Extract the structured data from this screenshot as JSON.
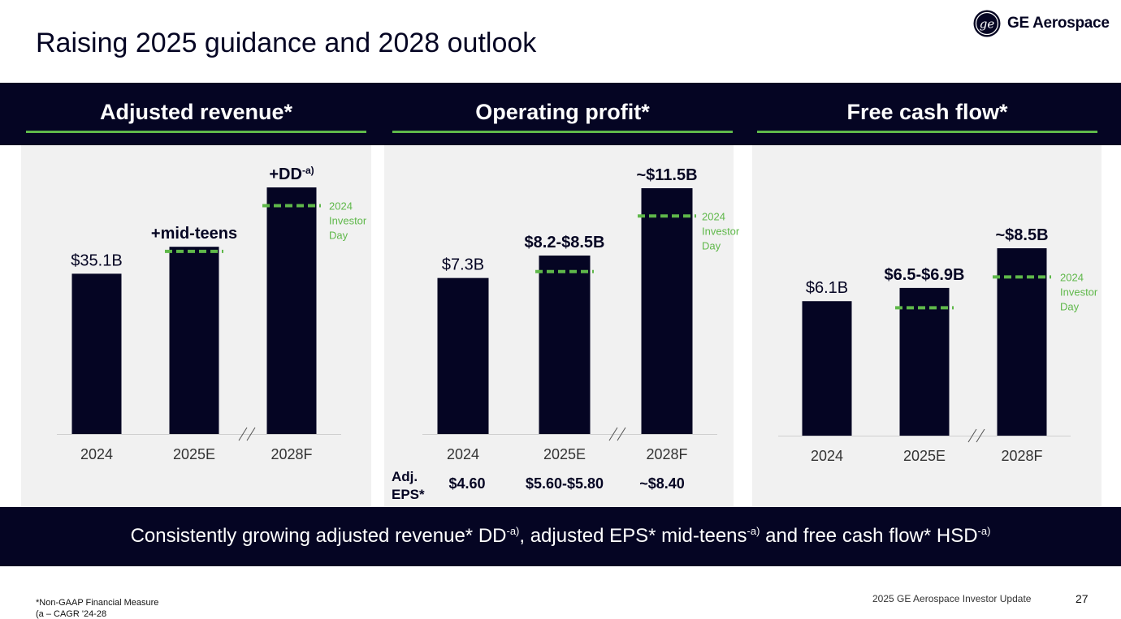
{
  "slide": {
    "title": "Raising 2025 guidance and 2028 outlook",
    "brand": "GE Aerospace",
    "colors": {
      "navy": "#050523",
      "green": "#5fb84a",
      "panel": "#f1f1f1",
      "grid": "#cfcfcf"
    }
  },
  "chart_data": [
    {
      "type": "bar",
      "title": "Adjusted revenue*",
      "categories": [
        "2024",
        "2025E",
        "2028F"
      ],
      "values": [
        35.1,
        41,
        54
      ],
      "value_labels": [
        "$35.1B",
        "+mid-teens",
        "+DD"
      ],
      "value_label_superscripts": [
        "",
        "",
        "-a)"
      ],
      "reference_series": {
        "name": "2024 Investor Day",
        "values": [
          40,
          50
        ]
      },
      "reference_label_lines": [
        "2024",
        "Investor",
        "Day"
      ],
      "axis_break": "between 2025E and 2028F",
      "ylim": [
        0,
        57
      ]
    },
    {
      "type": "bar",
      "title": "Operating profit*",
      "categories": [
        "2024",
        "2025E",
        "2028F"
      ],
      "values": [
        7.3,
        8.35,
        11.5
      ],
      "value_labels": [
        "$7.3B",
        "$8.2-$8.5B",
        "~$11.5B"
      ],
      "value_label_superscripts": [
        "",
        "",
        ""
      ],
      "reference_series": {
        "name": "2024 Investor Day",
        "values": [
          7.6,
          10.2
        ]
      },
      "reference_label_lines": [
        "2024",
        "Investor",
        "Day"
      ],
      "axis_break": "between 2025E and 2028F",
      "ylim": [
        0,
        12.2
      ],
      "eps": {
        "label_lines": [
          "Adj.",
          "EPS*"
        ],
        "values": [
          "$4.60",
          "$5.60-$5.80",
          "~$8.40"
        ]
      }
    },
    {
      "type": "bar",
      "title": "Free cash flow*",
      "categories": [
        "2024",
        "2025E",
        "2028F"
      ],
      "values": [
        6.1,
        6.7,
        8.5
      ],
      "value_labels": [
        "$6.1B",
        "$6.5-$6.9B",
        "~$8.5B"
      ],
      "value_label_superscripts": [
        "",
        "",
        ""
      ],
      "reference_series": {
        "name": "2024 Investor Day",
        "values": [
          5.8,
          7.2
        ]
      },
      "reference_label_lines": [
        "2024",
        "Investor",
        "Day"
      ],
      "axis_break": "between 2025E and 2028F",
      "ylim": [
        0,
        9.9
      ]
    }
  ],
  "footer": {
    "parts": [
      {
        "text": "Consistently growing adjusted revenue* DD",
        "sup": "-a)"
      },
      {
        "text": ", adjusted EPS* mid-teens",
        "sup": "-a)"
      },
      {
        "text": " and free cash flow* HSD",
        "sup": "-a)"
      }
    ]
  },
  "footnotes": {
    "line1": "*Non-GAAP Financial Measure",
    "line2": "(a – CAGR '24-28"
  },
  "bottom": {
    "event": "2025 GE Aerospace Investor Update",
    "page": "27"
  }
}
